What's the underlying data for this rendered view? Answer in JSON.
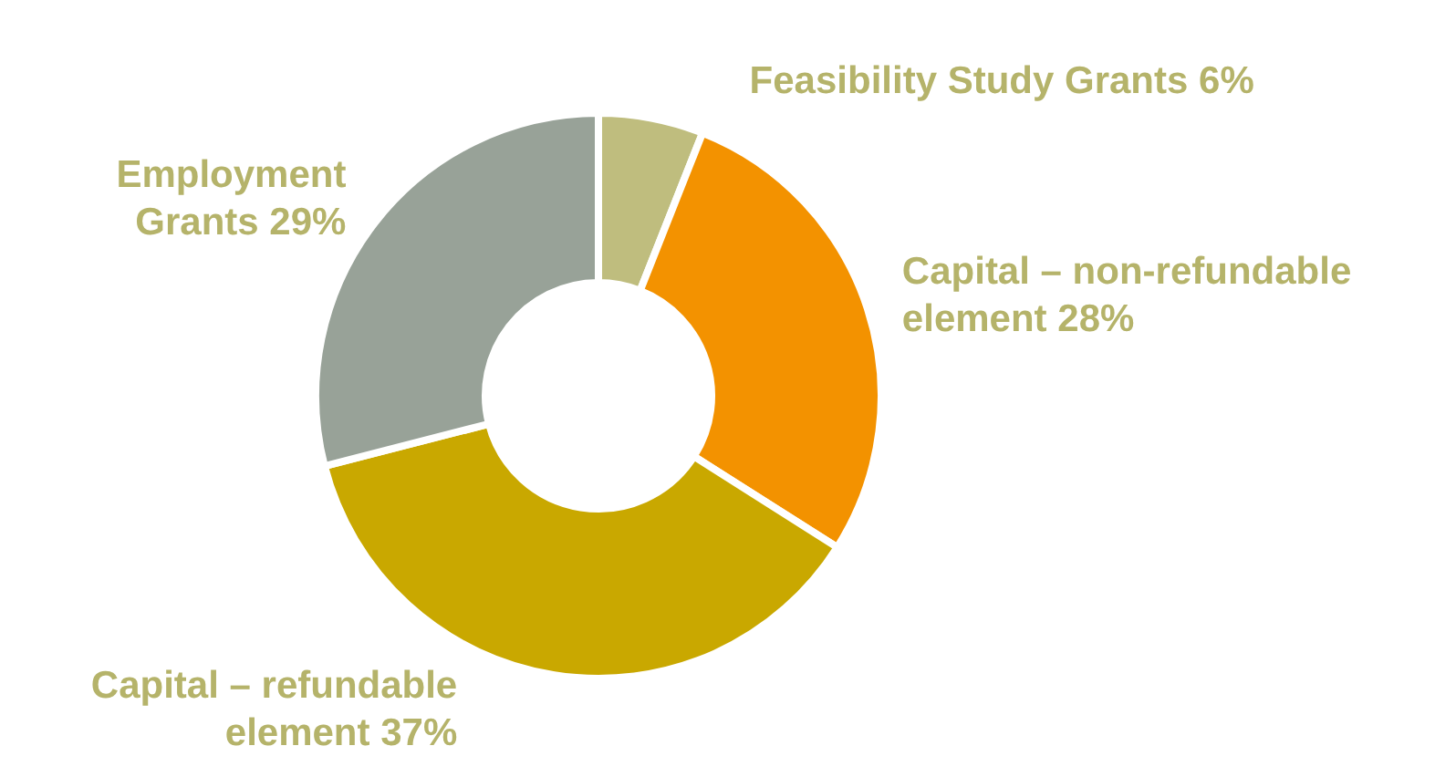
{
  "chart_data": {
    "type": "donut",
    "categories": [
      "Feasibility Study Grants",
      "Capital – non-refundable element",
      "Capital – refundable element",
      "Employment Grants"
    ],
    "values": [
      6,
      28,
      37,
      29
    ],
    "colors": [
      "#bfbd7e",
      "#f39200",
      "#c9a800",
      "#98a298"
    ],
    "value_labels": [
      "6%",
      "28%",
      "37%",
      "29%"
    ],
    "legend": false
  }
}
